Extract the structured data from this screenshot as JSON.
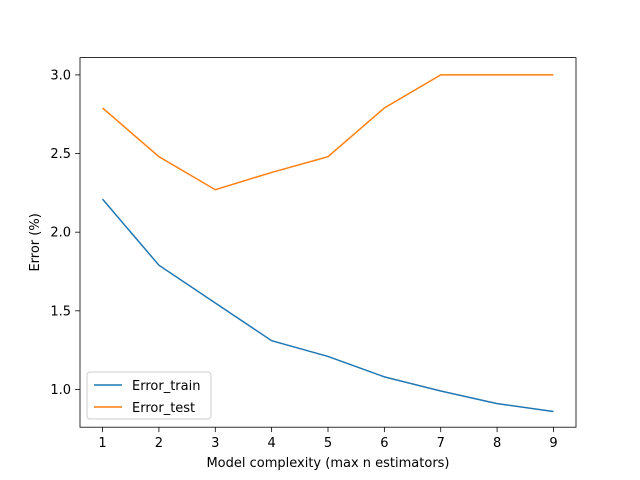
{
  "chart_data": {
    "type": "line",
    "title": "",
    "xlabel": "Model complexity (max n estimators)",
    "ylabel": "Error (%)",
    "xlim": [
      0.6,
      9.4
    ],
    "ylim": [
      0.76,
      3.11
    ],
    "xticks": [
      1,
      2,
      3,
      4,
      5,
      6,
      7,
      8,
      9
    ],
    "yticks": [
      1.0,
      1.5,
      2.0,
      2.5,
      3.0
    ],
    "ytick_labels": [
      "1.0",
      "1.5",
      "2.0",
      "2.5",
      "3.0"
    ],
    "grid": false,
    "legend_position": "lower-left",
    "x": [
      1,
      2,
      3,
      4,
      5,
      6,
      7,
      8,
      9
    ],
    "series": [
      {
        "name": "Error_train",
        "color": "#1f77b4",
        "values": [
          2.21,
          1.79,
          1.55,
          1.31,
          1.21,
          1.08,
          0.99,
          0.91,
          0.86
        ]
      },
      {
        "name": "Error_test",
        "color": "#ff7f0e",
        "values": [
          2.79,
          2.48,
          2.27,
          2.38,
          2.48,
          2.79,
          3.0,
          3.0,
          3.0
        ]
      }
    ]
  }
}
